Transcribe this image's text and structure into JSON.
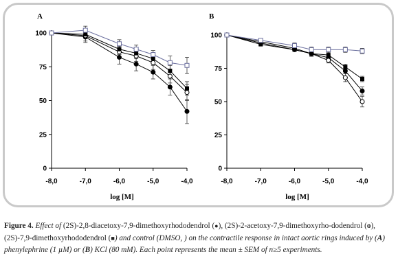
{
  "figure": {
    "caption": {
      "label": "Figure 4.",
      "segments": [
        {
          "text": " Effect of ",
          "style": "it"
        },
        {
          "text": "(2S)-2,8-diacetoxy-7,9-dimethoxyrhododendrol ",
          "style": "n"
        },
        {
          "text": "(",
          "style": "n"
        },
        {
          "text": "●",
          "style": "sym"
        },
        {
          "text": "), ",
          "style": "n"
        },
        {
          "text": "(2S)-2-acetoxy-7,9-dimethoxyrho-dodendrol ",
          "style": "n"
        },
        {
          "text": "(",
          "style": "n"
        },
        {
          "text": "o",
          "style": "b"
        },
        {
          "text": "), ",
          "style": "n"
        },
        {
          "text": "(2S)-7,9-dimethoxyrhododendrol ",
          "style": "n"
        },
        {
          "text": "(",
          "style": "n"
        },
        {
          "text": "■",
          "style": "sym"
        },
        {
          "text": ") and control (DMSO,     ) on the contractile response in intact aortic rings induced by (",
          "style": "it"
        },
        {
          "text": "A",
          "style": "bi"
        },
        {
          "text": ") phenylephrine (1 µM) or (",
          "style": "it"
        },
        {
          "text": "B",
          "style": "bi"
        },
        {
          "text": ") KCl (80 mM). Each point represents the mean ± SEM of n≥5 experiments.",
          "style": "it"
        }
      ]
    }
  },
  "chart_data": [
    {
      "type": "line",
      "panel_label": "A",
      "xlabel": "log [M]",
      "ylabel": "",
      "x_ticks": [
        "-8,0",
        "-7,0",
        "-6,0",
        "-5,0",
        "-4,0"
      ],
      "y_ticks": [
        "0",
        "25",
        "50",
        "75",
        "100"
      ],
      "xlim": [
        -8,
        -4
      ],
      "ylim": [
        0,
        100
      ],
      "x": [
        -8,
        -7,
        -6,
        -5.5,
        -5,
        -4.5,
        -4
      ],
      "series": [
        {
          "marker": "filled-circle",
          "color": "#000000",
          "values": [
            100,
            97,
            82,
            77,
            71,
            60,
            42
          ],
          "errors": [
            0,
            4,
            5,
            5,
            5,
            6,
            9
          ]
        },
        {
          "marker": "open-circle",
          "color": "#000000",
          "values": [
            100,
            98,
            86,
            83,
            78,
            68,
            56
          ],
          "errors": [
            0,
            4,
            4,
            4,
            5,
            5,
            6
          ]
        },
        {
          "marker": "filled-square",
          "color": "#000000",
          "values": [
            100,
            99,
            88,
            85,
            81,
            72,
            59
          ],
          "errors": [
            0,
            3,
            4,
            4,
            4,
            4,
            5
          ]
        },
        {
          "marker": "open-square",
          "color": "#6b6f9e",
          "values": [
            100,
            102,
            92,
            88,
            84,
            78,
            76
          ],
          "errors": [
            0,
            3,
            3,
            3,
            3,
            5,
            6
          ]
        }
      ]
    },
    {
      "type": "line",
      "panel_label": "B",
      "xlabel": "log [M]",
      "ylabel": "",
      "x_ticks": [
        "-8,0",
        "-7,0",
        "-6,0",
        "-5,0",
        "-4,0"
      ],
      "y_ticks": [
        "0",
        "25",
        "50",
        "75",
        "100"
      ],
      "xlim": [
        -8,
        -4
      ],
      "ylim": [
        0,
        100
      ],
      "x": [
        -8,
        -7,
        -6,
        -5.5,
        -5,
        -4.5,
        -4
      ],
      "series": [
        {
          "marker": "filled-circle",
          "color": "#000000",
          "values": [
            100,
            94,
            89,
            86,
            83,
            73,
            58
          ],
          "errors": [
            0,
            1,
            1,
            2,
            2,
            2,
            3
          ]
        },
        {
          "marker": "open-circle",
          "color": "#000000",
          "values": [
            100,
            95,
            90,
            86,
            81,
            68,
            50
          ],
          "errors": [
            0,
            1,
            1,
            2,
            2,
            3,
            4
          ]
        },
        {
          "marker": "filled-square",
          "color": "#000000",
          "values": [
            100,
            93,
            89,
            86,
            85,
            76,
            67
          ],
          "errors": [
            0,
            1,
            1,
            1,
            2,
            2,
            2
          ]
        },
        {
          "marker": "open-square",
          "color": "#6b6f9e",
          "values": [
            100,
            96,
            92,
            89,
            89,
            89,
            88
          ],
          "errors": [
            0,
            1,
            2,
            2,
            2,
            2,
            2
          ]
        }
      ]
    }
  ]
}
